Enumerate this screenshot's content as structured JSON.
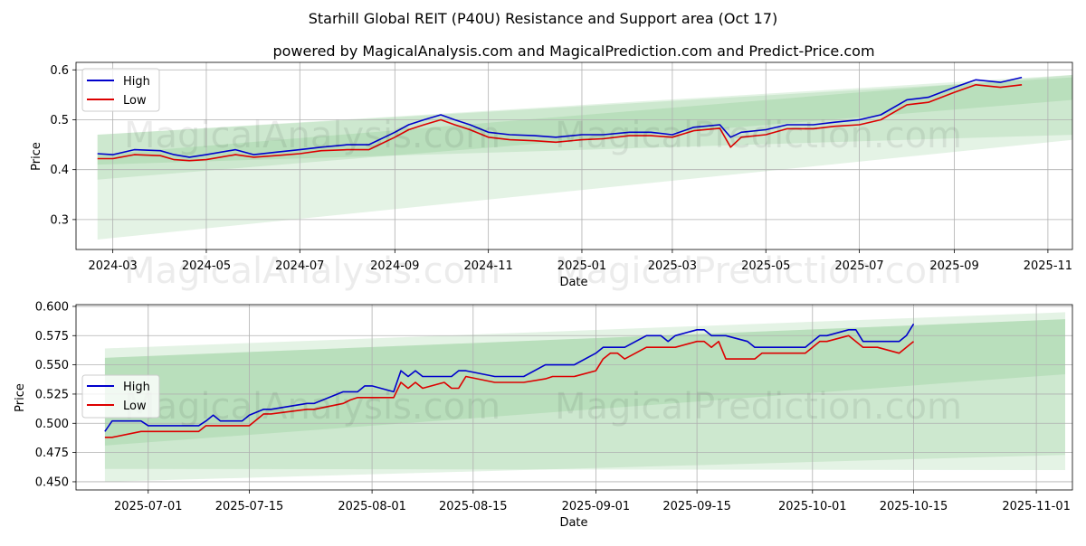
{
  "title": "Starhill Global REIT (P40U) Resistance and Support area (Oct 17)",
  "subtitle": "powered by MagicalAnalysis.com and MagicalPrediction.com and Predict-Price.com",
  "watermarks": [
    "MagicalAnalysis.com",
    "MagicalPrediction.com"
  ],
  "colors": {
    "high": "#0000cc",
    "low": "#dd0000",
    "band": "#4caf50"
  },
  "chart_data": [
    {
      "type": "line",
      "xlabel": "Date",
      "ylabel": "Price",
      "xlim": [
        "2024-02-06",
        "2025-11-17"
      ],
      "ylim": [
        0.24,
        0.615
      ],
      "xticks": [
        "2024-03",
        "2024-05",
        "2024-07",
        "2024-09",
        "2024-11",
        "2025-01",
        "2025-03",
        "2025-05",
        "2025-07",
        "2025-09",
        "2025-11"
      ],
      "xtick_dates": [
        "2024-03-01",
        "2024-05-01",
        "2024-07-01",
        "2024-09-01",
        "2024-11-01",
        "2025-01-01",
        "2025-03-01",
        "2025-05-01",
        "2025-07-01",
        "2025-09-01",
        "2025-11-01"
      ],
      "yticks": [
        0.3,
        0.4,
        0.5,
        0.6
      ],
      "yticklabels": [
        "0.3",
        "0.4",
        "0.5",
        "0.6"
      ],
      "grid": true,
      "legend_position": "upper-left",
      "bands": [
        {
          "start": "2024-02-20",
          "end": "2025-11-18",
          "upper": [
            0.47,
            0.59
          ],
          "lower": [
            0.38,
            0.54
          ]
        },
        {
          "start": "2024-02-20",
          "end": "2025-11-18",
          "upper": [
            0.43,
            0.59
          ],
          "lower": [
            0.26,
            0.46
          ]
        },
        {
          "start": "2024-02-20",
          "end": "2025-11-18",
          "upper": [
            0.47,
            0.585
          ],
          "lower": [
            0.41,
            0.47
          ]
        }
      ],
      "series": [
        {
          "name": "High",
          "color": "#0000cc",
          "x": [
            "2024-02-20",
            "2024-03-01",
            "2024-03-15",
            "2024-04-01",
            "2024-04-10",
            "2024-04-20",
            "2024-05-01",
            "2024-05-20",
            "2024-06-01",
            "2024-06-15",
            "2024-07-01",
            "2024-07-15",
            "2024-08-01",
            "2024-08-15",
            "2024-09-01",
            "2024-09-10",
            "2024-09-20",
            "2024-10-01",
            "2024-10-10",
            "2024-10-20",
            "2024-11-01",
            "2024-11-15",
            "2024-12-01",
            "2024-12-15",
            "2025-01-01",
            "2025-01-15",
            "2025-02-01",
            "2025-02-15",
            "2025-03-01",
            "2025-03-15",
            "2025-04-01",
            "2025-04-08",
            "2025-04-15",
            "2025-05-01",
            "2025-05-15",
            "2025-06-01",
            "2025-06-15",
            "2025-07-01",
            "2025-07-15",
            "2025-08-01",
            "2025-08-15",
            "2025-09-01",
            "2025-09-15",
            "2025-10-01",
            "2025-10-15"
          ],
          "y": [
            0.432,
            0.43,
            0.44,
            0.438,
            0.43,
            0.425,
            0.43,
            0.44,
            0.43,
            0.435,
            0.44,
            0.445,
            0.45,
            0.45,
            0.475,
            0.49,
            0.5,
            0.51,
            0.5,
            0.49,
            0.475,
            0.47,
            0.468,
            0.465,
            0.47,
            0.47,
            0.475,
            0.475,
            0.47,
            0.485,
            0.49,
            0.465,
            0.475,
            0.48,
            0.49,
            0.49,
            0.495,
            0.5,
            0.51,
            0.54,
            0.545,
            0.565,
            0.58,
            0.575,
            0.585
          ]
        },
        {
          "name": "Low",
          "color": "#dd0000",
          "x": [
            "2024-02-20",
            "2024-03-01",
            "2024-03-15",
            "2024-04-01",
            "2024-04-10",
            "2024-04-20",
            "2024-05-01",
            "2024-05-20",
            "2024-06-01",
            "2024-06-15",
            "2024-07-01",
            "2024-07-15",
            "2024-08-01",
            "2024-08-15",
            "2024-09-01",
            "2024-09-10",
            "2024-09-20",
            "2024-10-01",
            "2024-10-10",
            "2024-10-20",
            "2024-11-01",
            "2024-11-15",
            "2024-12-01",
            "2024-12-15",
            "2025-01-01",
            "2025-01-15",
            "2025-02-01",
            "2025-02-15",
            "2025-03-01",
            "2025-03-15",
            "2025-04-01",
            "2025-04-08",
            "2025-04-15",
            "2025-05-01",
            "2025-05-15",
            "2025-06-01",
            "2025-06-15",
            "2025-07-01",
            "2025-07-15",
            "2025-08-01",
            "2025-08-15",
            "2025-09-01",
            "2025-09-15",
            "2025-10-01",
            "2025-10-15"
          ],
          "y": [
            0.422,
            0.422,
            0.43,
            0.428,
            0.42,
            0.418,
            0.42,
            0.43,
            0.425,
            0.428,
            0.432,
            0.438,
            0.44,
            0.44,
            0.465,
            0.48,
            0.49,
            0.5,
            0.49,
            0.48,
            0.465,
            0.46,
            0.458,
            0.455,
            0.46,
            0.462,
            0.468,
            0.468,
            0.465,
            0.478,
            0.483,
            0.445,
            0.465,
            0.47,
            0.482,
            0.482,
            0.487,
            0.49,
            0.5,
            0.53,
            0.535,
            0.555,
            0.57,
            0.565,
            0.57
          ]
        }
      ]
    },
    {
      "type": "line",
      "xlabel": "Date",
      "ylabel": "Price",
      "xlim": [
        "2025-06-21",
        "2025-11-06"
      ],
      "ylim": [
        0.443,
        0.6015
      ],
      "xticks": [
        "2025-07-01",
        "2025-07-15",
        "2025-08-01",
        "2025-08-15",
        "2025-09-01",
        "2025-09-15",
        "2025-10-01",
        "2025-10-15",
        "2025-11-01"
      ],
      "xtick_dates": [
        "2025-07-01",
        "2025-07-15",
        "2025-08-01",
        "2025-08-15",
        "2025-09-01",
        "2025-09-15",
        "2025-10-01",
        "2025-10-15",
        "2025-11-01"
      ],
      "yticks": [
        0.45,
        0.475,
        0.5,
        0.525,
        0.55,
        0.575,
        0.6
      ],
      "yticklabels": [
        "0.450",
        "0.475",
        "0.500",
        "0.525",
        "0.550",
        "0.575",
        "0.600"
      ],
      "grid": true,
      "legend_position": "center-left",
      "bands": [
        {
          "start": "2025-06-25",
          "end": "2025-11-05",
          "upper": [
            0.564,
            0.595
          ],
          "lower": [
            0.45,
            0.473
          ]
        },
        {
          "start": "2025-06-25",
          "end": "2025-11-05",
          "upper": [
            0.556,
            0.589
          ],
          "lower": [
            0.461,
            0.46
          ]
        },
        {
          "start": "2025-06-25",
          "end": "2025-11-05",
          "upper": [
            0.556,
            0.589
          ],
          "lower": [
            0.481,
            0.542
          ]
        }
      ],
      "series": [
        {
          "name": "High",
          "color": "#0000cc",
          "x": [
            "2025-06-25",
            "2025-06-26",
            "2025-06-30",
            "2025-07-01",
            "2025-07-08",
            "2025-07-09",
            "2025-07-10",
            "2025-07-11",
            "2025-07-14",
            "2025-07-15",
            "2025-07-17",
            "2025-07-18",
            "2025-07-23",
            "2025-07-24",
            "2025-07-28",
            "2025-07-29",
            "2025-07-30",
            "2025-07-31",
            "2025-08-01",
            "2025-08-04",
            "2025-08-05",
            "2025-08-06",
            "2025-08-07",
            "2025-08-08",
            "2025-08-11",
            "2025-08-12",
            "2025-08-13",
            "2025-08-14",
            "2025-08-18",
            "2025-08-19",
            "2025-08-22",
            "2025-08-25",
            "2025-08-26",
            "2025-08-27",
            "2025-08-28",
            "2025-08-29",
            "2025-09-01",
            "2025-09-02",
            "2025-09-03",
            "2025-09-05",
            "2025-09-08",
            "2025-09-10",
            "2025-09-11",
            "2025-09-12",
            "2025-09-15",
            "2025-09-16",
            "2025-09-17",
            "2025-09-19",
            "2025-09-22",
            "2025-09-23",
            "2025-09-24",
            "2025-09-30",
            "2025-10-01",
            "2025-10-02",
            "2025-10-03",
            "2025-10-06",
            "2025-10-07",
            "2025-10-08",
            "2025-10-10",
            "2025-10-13",
            "2025-10-14",
            "2025-10-15"
          ],
          "y": [
            0.493,
            0.502,
            0.502,
            0.498,
            0.498,
            0.502,
            0.507,
            0.502,
            0.502,
            0.507,
            0.512,
            0.512,
            0.517,
            0.517,
            0.527,
            0.527,
            0.527,
            0.532,
            0.532,
            0.527,
            0.545,
            0.54,
            0.545,
            0.54,
            0.54,
            0.54,
            0.545,
            0.545,
            0.54,
            0.54,
            0.54,
            0.55,
            0.55,
            0.55,
            0.55,
            0.55,
            0.56,
            0.565,
            0.565,
            0.565,
            0.575,
            0.575,
            0.57,
            0.575,
            0.58,
            0.58,
            0.575,
            0.575,
            0.57,
            0.565,
            0.565,
            0.565,
            0.57,
            0.575,
            0.575,
            0.58,
            0.58,
            0.57,
            0.57,
            0.57,
            0.575,
            0.585
          ]
        },
        {
          "name": "Low",
          "color": "#dd0000",
          "x": [
            "2025-06-25",
            "2025-06-26",
            "2025-06-30",
            "2025-07-01",
            "2025-07-08",
            "2025-07-09",
            "2025-07-10",
            "2025-07-11",
            "2025-07-14",
            "2025-07-15",
            "2025-07-17",
            "2025-07-18",
            "2025-07-23",
            "2025-07-24",
            "2025-07-28",
            "2025-07-29",
            "2025-07-30",
            "2025-07-31",
            "2025-08-01",
            "2025-08-04",
            "2025-08-05",
            "2025-08-06",
            "2025-08-07",
            "2025-08-08",
            "2025-08-11",
            "2025-08-12",
            "2025-08-13",
            "2025-08-14",
            "2025-08-18",
            "2025-08-19",
            "2025-08-22",
            "2025-08-25",
            "2025-08-26",
            "2025-08-27",
            "2025-08-28",
            "2025-08-29",
            "2025-09-01",
            "2025-09-02",
            "2025-09-03",
            "2025-09-04",
            "2025-09-05",
            "2025-09-08",
            "2025-09-10",
            "2025-09-11",
            "2025-09-12",
            "2025-09-15",
            "2025-09-16",
            "2025-09-17",
            "2025-09-18",
            "2025-09-19",
            "2025-09-22",
            "2025-09-23",
            "2025-09-24",
            "2025-09-30",
            "2025-10-01",
            "2025-10-02",
            "2025-10-03",
            "2025-10-06",
            "2025-10-07",
            "2025-10-08",
            "2025-10-10",
            "2025-10-13",
            "2025-10-14",
            "2025-10-15"
          ],
          "y": [
            0.488,
            0.488,
            0.493,
            0.493,
            0.493,
            0.498,
            0.498,
            0.498,
            0.498,
            0.498,
            0.508,
            0.508,
            0.512,
            0.512,
            0.517,
            0.52,
            0.522,
            0.522,
            0.522,
            0.522,
            0.535,
            0.53,
            0.535,
            0.53,
            0.535,
            0.53,
            0.53,
            0.54,
            0.535,
            0.535,
            0.535,
            0.538,
            0.54,
            0.54,
            0.54,
            0.54,
            0.545,
            0.555,
            0.56,
            0.56,
            0.555,
            0.565,
            0.565,
            0.565,
            0.565,
            0.57,
            0.57,
            0.565,
            0.57,
            0.555,
            0.555,
            0.555,
            0.56,
            0.56,
            0.565,
            0.57,
            0.57,
            0.575,
            0.57,
            0.565,
            0.565,
            0.56,
            0.565,
            0.57
          ]
        }
      ]
    }
  ]
}
